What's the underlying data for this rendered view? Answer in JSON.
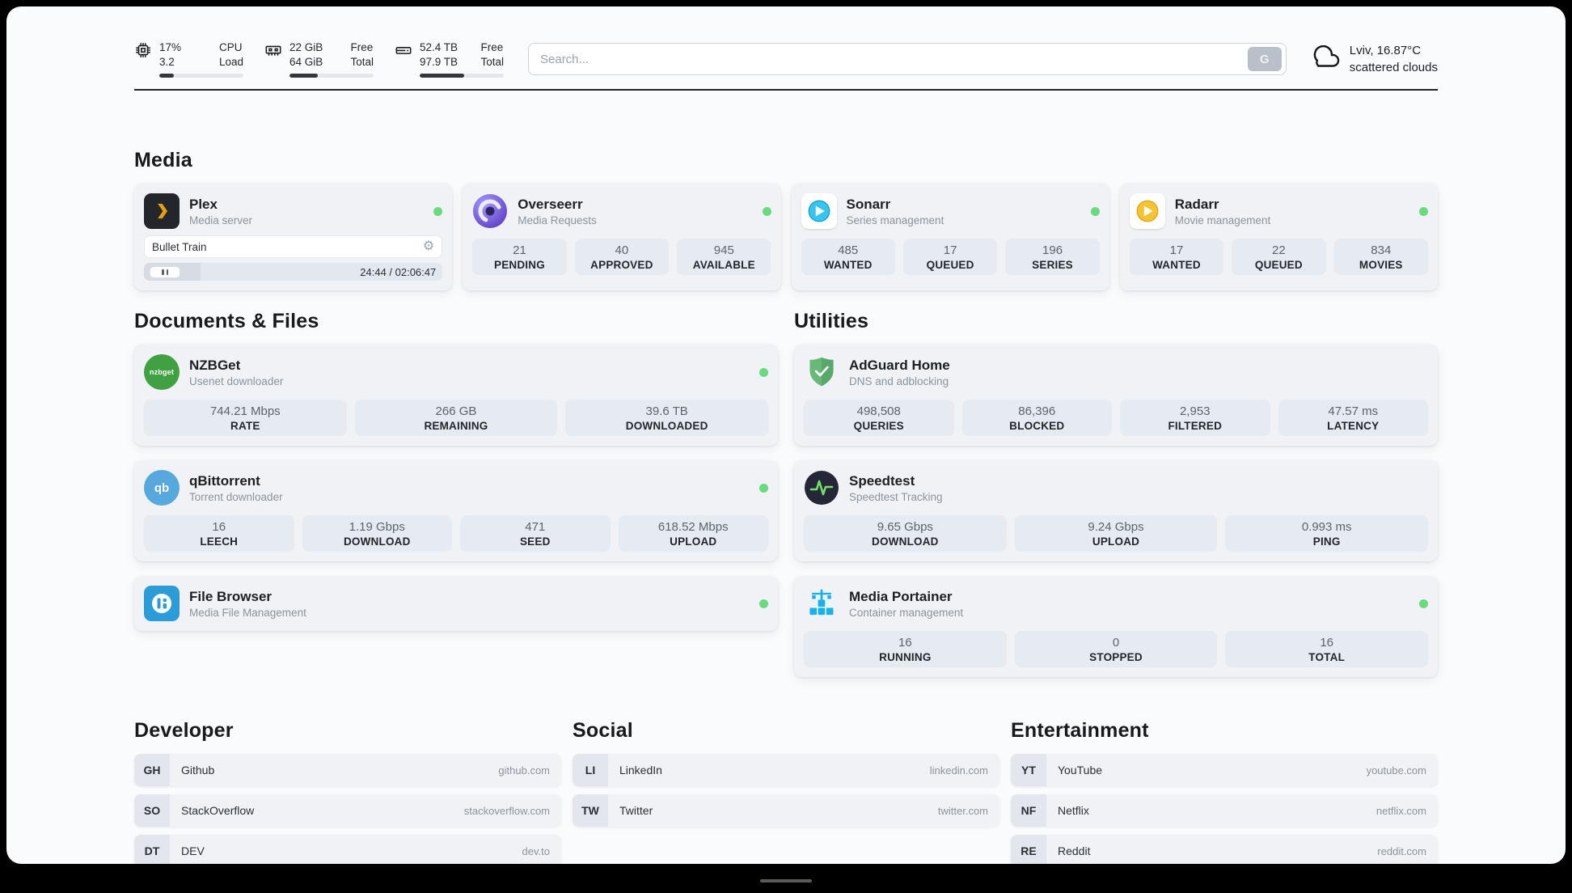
{
  "header": {
    "cpu": {
      "value_top": "17%",
      "value_bottom": "3.2",
      "label_top": "CPU",
      "label_bottom": "Load",
      "bar_percent": 17
    },
    "ram": {
      "value_top": "22 GiB",
      "value_bottom": "64 GiB",
      "label_top": "Free",
      "label_bottom": "Total",
      "bar_percent": 34
    },
    "disk": {
      "value_top": "52.4 TB",
      "value_bottom": "97.9 TB",
      "label_top": "Free",
      "label_bottom": "Total",
      "bar_percent": 53
    },
    "search": {
      "placeholder": "Search...",
      "engine_button": "G"
    },
    "weather": {
      "location": "Lviv, 16.87°C",
      "condition": "scattered clouds"
    }
  },
  "section_titles": {
    "media": "Media",
    "documents": "Documents & Files",
    "utilities": "Utilities",
    "developer": "Developer",
    "social": "Social",
    "entertainment": "Entertainment"
  },
  "media": {
    "plex": {
      "name": "Plex",
      "subtitle": "Media server",
      "now_playing": "Bullet Train",
      "time_display": "24:44 / 02:06:47",
      "progress_percent": 19
    },
    "overseerr": {
      "name": "Overseerr",
      "subtitle": "Media Requests",
      "stats": [
        {
          "value": "21",
          "label": "PENDING"
        },
        {
          "value": "40",
          "label": "APPROVED"
        },
        {
          "value": "945",
          "label": "AVAILABLE"
        }
      ]
    },
    "sonarr": {
      "name": "Sonarr",
      "subtitle": "Series management",
      "stats": [
        {
          "value": "485",
          "label": "WANTED"
        },
        {
          "value": "17",
          "label": "QUEUED"
        },
        {
          "value": "196",
          "label": "SERIES"
        }
      ]
    },
    "radarr": {
      "name": "Radarr",
      "subtitle": "Movie management",
      "stats": [
        {
          "value": "17",
          "label": "WANTED"
        },
        {
          "value": "22",
          "label": "QUEUED"
        },
        {
          "value": "834",
          "label": "MOVIES"
        }
      ]
    }
  },
  "documents": {
    "nzbget": {
      "name": "NZBGet",
      "subtitle": "Usenet downloader",
      "icon_text": "nzbget",
      "stats": [
        {
          "value": "744.21 Mbps",
          "label": "RATE"
        },
        {
          "value": "266 GB",
          "label": "REMAINING"
        },
        {
          "value": "39.6 TB",
          "label": "DOWNLOADED"
        }
      ]
    },
    "qbittorrent": {
      "name": "qBittorrent",
      "subtitle": "Torrent downloader",
      "icon_text": "qb",
      "stats": [
        {
          "value": "16",
          "label": "LEECH"
        },
        {
          "value": "1.19 Gbps",
          "label": "DOWNLOAD"
        },
        {
          "value": "471",
          "label": "SEED"
        },
        {
          "value": "618.52 Mbps",
          "label": "UPLOAD"
        }
      ]
    },
    "filebrowser": {
      "name": "File Browser",
      "subtitle": "Media File Management"
    }
  },
  "utilities": {
    "adguard": {
      "name": "AdGuard Home",
      "subtitle": "DNS and adblocking",
      "stats": [
        {
          "value": "498,508",
          "label": "QUERIES"
        },
        {
          "value": "86,396",
          "label": "BLOCKED"
        },
        {
          "value": "2,953",
          "label": "FILTERED"
        },
        {
          "value": "47.57 ms",
          "label": "LATENCY"
        }
      ]
    },
    "speedtest": {
      "name": "Speedtest",
      "subtitle": "Speedtest Tracking",
      "stats": [
        {
          "value": "9.65 Gbps",
          "label": "DOWNLOAD"
        },
        {
          "value": "9.24 Gbps",
          "label": "UPLOAD"
        },
        {
          "value": "0.993 ms",
          "label": "PING"
        }
      ]
    },
    "portainer": {
      "name": "Media Portainer",
      "subtitle": "Container management",
      "stats": [
        {
          "value": "16",
          "label": "RUNNING"
        },
        {
          "value": "0",
          "label": "STOPPED"
        },
        {
          "value": "16",
          "label": "TOTAL"
        }
      ]
    }
  },
  "bookmarks": {
    "developer": [
      {
        "abbr": "GH",
        "name": "Github",
        "url": "github.com"
      },
      {
        "abbr": "SO",
        "name": "StackOverflow",
        "url": "stackoverflow.com"
      },
      {
        "abbr": "DT",
        "name": "DEV",
        "url": "dev.to"
      }
    ],
    "social": [
      {
        "abbr": "LI",
        "name": "LinkedIn",
        "url": "linkedin.com"
      },
      {
        "abbr": "TW",
        "name": "Twitter",
        "url": "twitter.com"
      }
    ],
    "entertainment": [
      {
        "abbr": "YT",
        "name": "YouTube",
        "url": "youtube.com"
      },
      {
        "abbr": "NF",
        "name": "Netflix",
        "url": "netflix.com"
      },
      {
        "abbr": "RE",
        "name": "Reddit",
        "url": "reddit.com"
      }
    ]
  },
  "colors": {
    "status_online": "#69db7c",
    "plex_accent": "#e5a00d",
    "frame": "#000000",
    "page_background": "#fafbfd"
  }
}
